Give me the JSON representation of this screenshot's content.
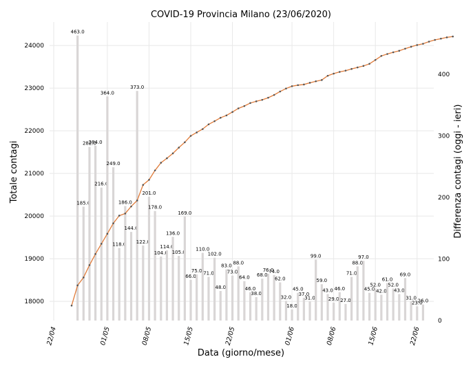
{
  "chart_data": {
    "type": "bar+line",
    "title": "COVID-19 Provincia Milano (23/06/2020)",
    "xlabel": "Data (giorno/mese)",
    "ylabel_left": "Totale contagi",
    "ylabel_right": "Differenza contagi (oggi - ieri)",
    "x_ticks": [
      "22/04",
      "01/05",
      "08/05",
      "15/05",
      "22/05",
      "01/06",
      "08/06",
      "15/06",
      "22/06"
    ],
    "x_tick_days": [
      0,
      9,
      16,
      23,
      30,
      40,
      47,
      54,
      61
    ],
    "x_start_day": 3,
    "ylim_left": [
      17550,
      24550
    ],
    "yticks_left": [
      18000,
      19000,
      20000,
      21000,
      22000,
      23000,
      24000
    ],
    "ylim_right": [
      0,
      485
    ],
    "yticks_right": [
      0,
      100,
      200,
      300,
      400
    ],
    "grid": true,
    "bar_color": "#d9d6d6",
    "line_color": "#e07b39",
    "marker_color": "#555555",
    "line_series": {
      "name": "Totale contagi",
      "values": [
        17900,
        18375,
        18560,
        18850,
        19110,
        19350,
        19585,
        19830,
        20010,
        20060,
        20225,
        20365,
        20730,
        20850,
        21070,
        21250,
        21355,
        21470,
        21605,
        21730,
        21880,
        21960,
        22040,
        22150,
        22225,
        22305,
        22360,
        22440,
        22525,
        22580,
        22650,
        22690,
        22725,
        22775,
        22840,
        22920,
        22990,
        23045,
        23070,
        23085,
        23125,
        23160,
        23190,
        23290,
        23340,
        23380,
        23410,
        23450,
        23485,
        23520,
        23570,
        23660,
        23755,
        23800,
        23840,
        23875,
        23925,
        23970,
        24010,
        24040,
        24090,
        24130,
        24160,
        24190,
        24210
      ]
    },
    "bar_series": {
      "name": "Differenza contagi (oggi - ieri)",
      "values": [
        0,
        463.0,
        185.0,
        282.0,
        284.0,
        216.0,
        364.0,
        249.0,
        118.0,
        186.0,
        144.0,
        373.0,
        122.0,
        201.0,
        178.0,
        104.0,
        114.0,
        136.0,
        105.0,
        169.0,
        66.0,
        75.0,
        110.0,
        71.0,
        102.0,
        48.0,
        83.0,
        73.0,
        88.0,
        64.0,
        46.0,
        38.0,
        68.0,
        76.0,
        74.0,
        62.0,
        32.0,
        18.0,
        45.0,
        37.0,
        31.0,
        99.0,
        59.0,
        43.0,
        29.0,
        46.0,
        27.0,
        71.0,
        88.0,
        97.0,
        45.0,
        52.0,
        42.0,
        61.0,
        52.0,
        43.0,
        69.0,
        31.0,
        23.0,
        26.0
      ]
    }
  }
}
